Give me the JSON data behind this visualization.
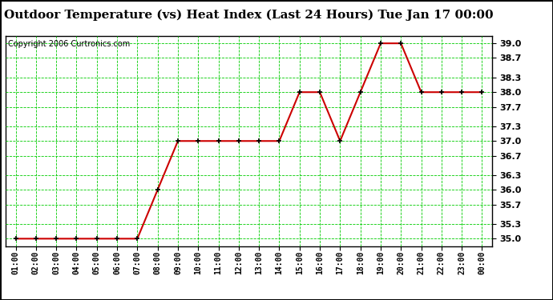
{
  "title": "Outdoor Temperature (vs) Heat Index (Last 24 Hours) Tue Jan 17 00:00",
  "copyright": "Copyright 2006 Curtronics.com",
  "x_labels": [
    "01:00",
    "02:00",
    "03:00",
    "04:00",
    "05:00",
    "06:00",
    "07:00",
    "08:00",
    "09:00",
    "10:00",
    "11:00",
    "12:00",
    "13:00",
    "14:00",
    "15:00",
    "16:00",
    "17:00",
    "18:00",
    "19:00",
    "20:00",
    "21:00",
    "22:00",
    "23:00",
    "00:00"
  ],
  "y_values": [
    35.0,
    35.0,
    35.0,
    35.0,
    35.0,
    35.0,
    35.0,
    36.0,
    37.0,
    37.0,
    37.0,
    37.0,
    37.0,
    37.0,
    38.0,
    38.0,
    37.0,
    38.0,
    39.0,
    39.0,
    38.0,
    38.0,
    38.0,
    38.0
  ],
  "ylim": [
    34.85,
    39.15
  ],
  "yticks": [
    35.0,
    35.3,
    35.7,
    36.0,
    36.3,
    36.7,
    37.0,
    37.3,
    37.7,
    38.0,
    38.3,
    38.7,
    39.0
  ],
  "line_color": "#cc0000",
  "marker_color": "#000000",
  "grid_color": "#00cc00",
  "background_color": "#ffffff",
  "fig_background": "#ffffff",
  "title_fontsize": 11,
  "copyright_fontsize": 7,
  "tick_fontsize": 8,
  "xtick_fontsize": 7
}
